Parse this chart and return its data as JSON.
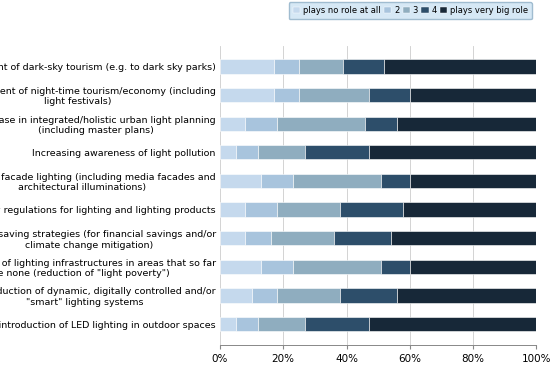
{
  "categories": [
    "The introduction of LED lighting in outdoor spaces",
    "The introduction of dynamic, digitally controlled and/or\n\"smart\" lighting systems",
    "The provision of lighting infrastructures in areas that so far\nhave none (reduction of \"light poverty\")",
    "Energy saving strategies (for financial savings and/or\nclimate change mitigation)",
    "New regulations for lighting and lighting products",
    "Increasing facade lighting (including media facades and\narchitectural illuminations)",
    "Increasing awareness of light pollution",
    "Increase in integrated/holistic urban light planning\n(including master plans)",
    "Encouragement of night-time tourism/economy (including\nlight festivals)",
    "Encouragement of dark-sky tourism (e.g. to dark sky parks)"
  ],
  "series": {
    "plays no role at all": [
      5,
      10,
      13,
      8,
      8,
      13,
      5,
      8,
      17,
      17
    ],
    "2": [
      7,
      8,
      10,
      8,
      10,
      10,
      7,
      10,
      8,
      8
    ],
    "3": [
      15,
      20,
      28,
      20,
      20,
      28,
      15,
      28,
      22,
      14
    ],
    "4": [
      20,
      18,
      9,
      18,
      20,
      9,
      20,
      10,
      13,
      13
    ],
    "plays very big role": [
      53,
      44,
      40,
      46,
      42,
      40,
      53,
      44,
      40,
      48
    ]
  },
  "colors": {
    "plays no role at all": "#c5d9ed",
    "2": "#a8c4dd",
    "3": "#8fadbf",
    "4": "#2d4e6a",
    "plays very big role": "#172838"
  },
  "legend_labels": [
    "plays no role at all",
    "2",
    "3",
    "4",
    "plays very big role"
  ],
  "xlim": [
    0,
    100
  ],
  "xtick_labels": [
    "0%",
    "20%",
    "40%",
    "60%",
    "80%",
    "100%"
  ],
  "xtick_values": [
    0,
    20,
    40,
    60,
    80,
    100
  ],
  "background_color": "#ffffff",
  "legend_bg": "#d6e8f5",
  "bar_height": 0.5,
  "fontsize_labels": 6.8,
  "fontsize_ticks": 7.5
}
